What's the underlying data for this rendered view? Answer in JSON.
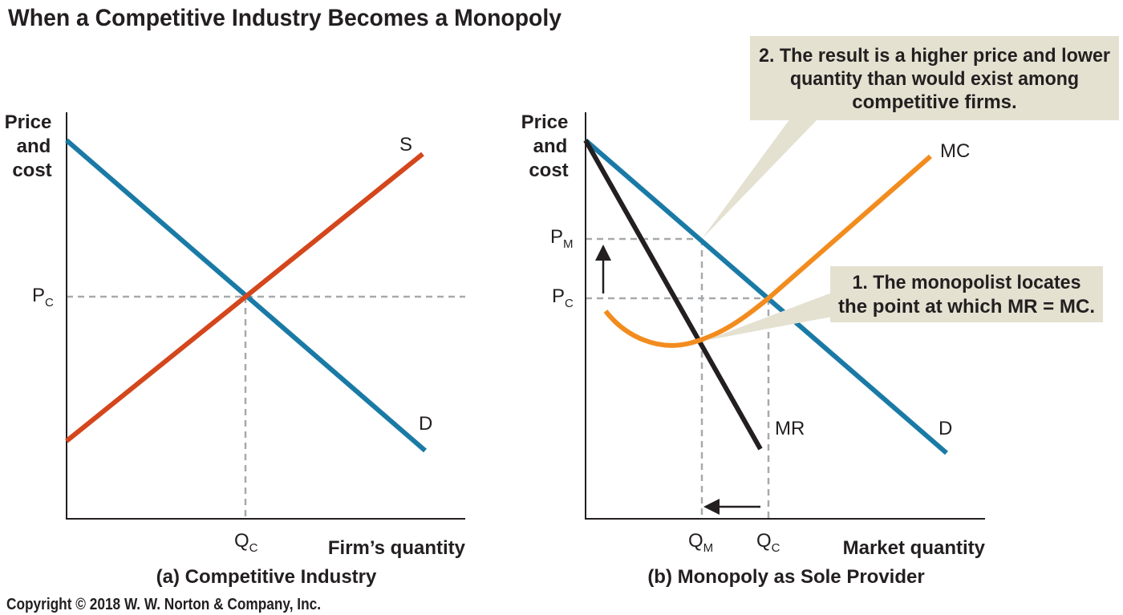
{
  "title": "When a Competitive Industry Becomes a Monopoly",
  "panels": [
    {
      "y_axis_label": [
        "Price",
        "and",
        "cost"
      ],
      "x_axis_label": "Firm’s quantity",
      "caption": "(a) Competitive Industry",
      "curve_labels": {
        "supply": "S",
        "demand": "D"
      },
      "price_labels": [
        {
          "main": "P",
          "sub": "C"
        }
      ],
      "quantity_labels": [
        {
          "main": "Q",
          "sub": "C"
        }
      ]
    },
    {
      "y_axis_label": [
        "Price",
        "and",
        "cost"
      ],
      "x_axis_label": "Market quantity",
      "caption": "(b) Monopoly as Sole Provider",
      "curve_labels": {
        "marginal_cost": "MC",
        "marginal_revenue": "MR",
        "demand": "D"
      },
      "price_labels": [
        {
          "main": "P",
          "sub": "M"
        },
        {
          "main": "P",
          "sub": "C"
        }
      ],
      "quantity_labels": [
        {
          "main": "Q",
          "sub": "M"
        },
        {
          "main": "Q",
          "sub": "C"
        }
      ]
    }
  ],
  "callouts": [
    {
      "lines": [
        "2. The result is a higher price and lower",
        "quantity than would exist among",
        "competitive firms."
      ]
    },
    {
      "lines": [
        "1. The monopolist locates",
        "the point at which MR = MC."
      ]
    }
  ],
  "copyright": "Copyright © 2018 W. W. Norton & Company, Inc."
}
